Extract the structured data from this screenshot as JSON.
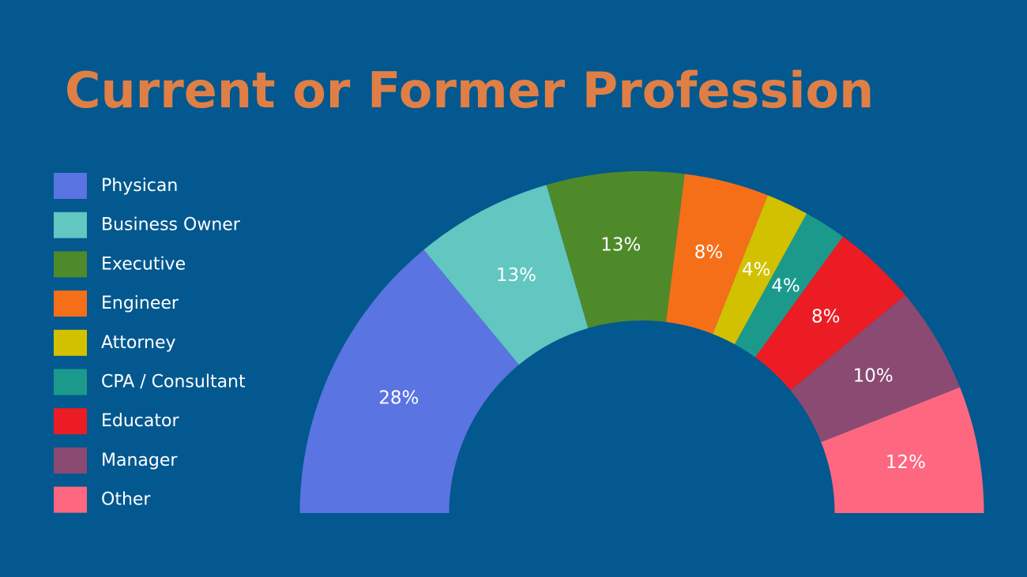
{
  "chart_data": {
    "type": "halfdonut",
    "title": "Current or Former Profession",
    "categories": [
      "Physican",
      "Business Owner",
      "Executive",
      "Engineer",
      "Attorney",
      "CPA / Consultant",
      "Educator",
      "Manager",
      "Other"
    ],
    "values": [
      28,
      13,
      13,
      8,
      4,
      4,
      8,
      10,
      12
    ],
    "value_labels": [
      "28%",
      "13%",
      "13%",
      "8%",
      "4%",
      "4%",
      "8%",
      "10%",
      "12%"
    ],
    "colors": [
      "#5a74e2",
      "#62c6c1",
      "#4e8a2a",
      "#f56f19",
      "#d2c100",
      "#1b9a8c",
      "#ec1c24",
      "#8a4a72",
      "#fe6780"
    ]
  }
}
